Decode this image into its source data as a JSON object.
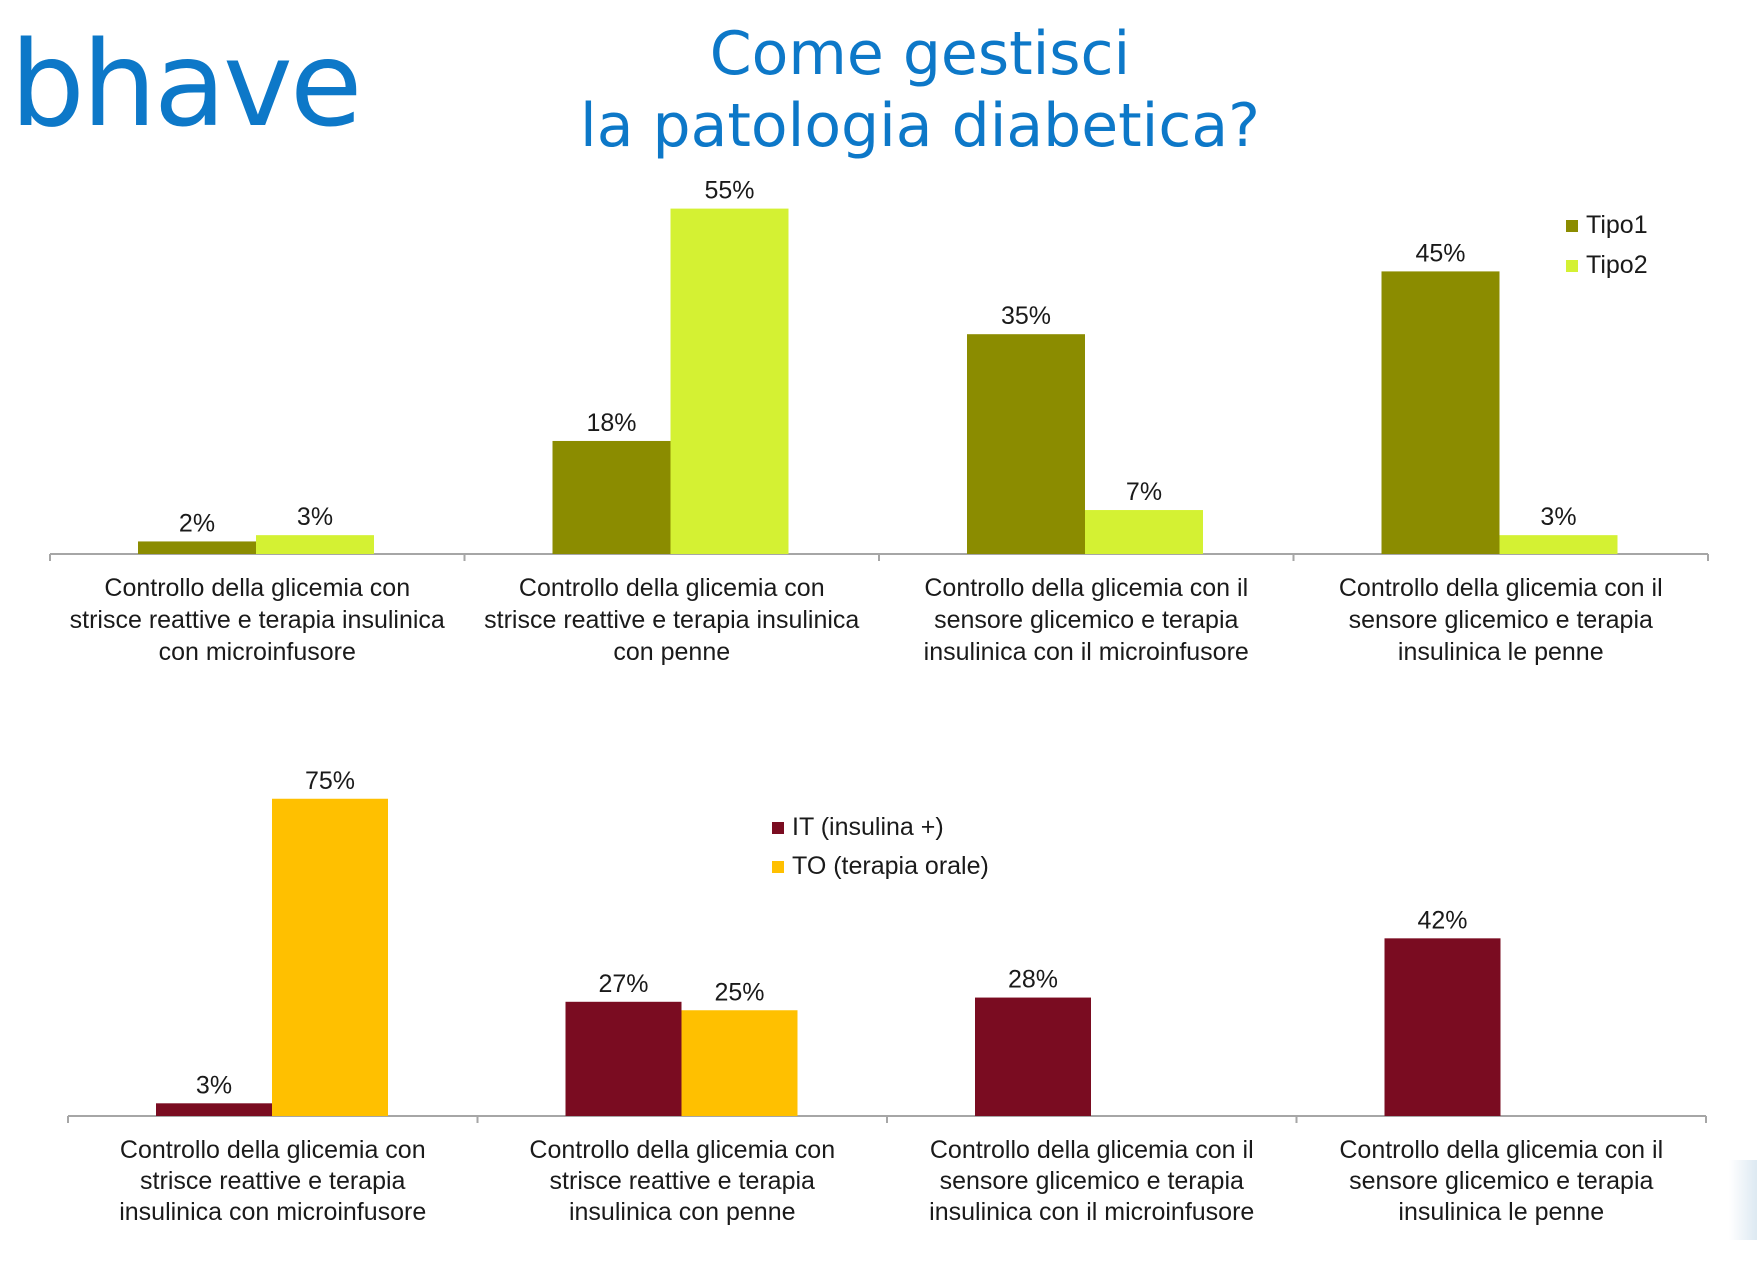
{
  "logo": {
    "text": "bhave",
    "color": "#0d78c8"
  },
  "header": {
    "title_line1": "Come gestisci",
    "title_line2": "la patologia diabetica?"
  },
  "chart_data": [
    {
      "type": "bar",
      "categories": [
        [
          "Controllo della glicemia con",
          "strisce reattive e terapia insulinica",
          "con microinfusore"
        ],
        [
          "Controllo della glicemia con",
          "strisce reattive e terapia insulinica",
          "con penne"
        ],
        [
          "Controllo della glicemia con il",
          "sensore glicemico e terapia",
          "insulinica con il microinfusore"
        ],
        [
          "Controllo della glicemia con il",
          "sensore glicemico e terapia",
          "insulinica le penne"
        ]
      ],
      "series": [
        {
          "name": "Tipo1",
          "color": "#8b8c00",
          "values": [
            2,
            18,
            35,
            45
          ],
          "labels": [
            "2%",
            "18%",
            "35%",
            "45%"
          ]
        },
        {
          "name": "Tipo2",
          "color": "#d4f133",
          "values": [
            3,
            55,
            7,
            3
          ],
          "labels": [
            "3%",
            "55%",
            "7%",
            "3%"
          ]
        }
      ],
      "ylim": [
        0,
        55
      ],
      "title": "",
      "xlabel": "",
      "ylabel": "",
      "grid": false,
      "legend": "top-right"
    },
    {
      "type": "bar",
      "categories": [
        [
          "Controllo della glicemia con",
          "strisce reattive e terapia",
          "insulinica con microinfusore"
        ],
        [
          "Controllo della glicemia con",
          "strisce reattive e terapia",
          "insulinica con penne"
        ],
        [
          "Controllo della glicemia con il",
          "sensore glicemico e terapia",
          "insulinica con il microinfusore"
        ],
        [
          "Controllo della glicemia con il",
          "sensore glicemico e terapia",
          "insulinica le penne"
        ]
      ],
      "series": [
        {
          "name": "IT (insulina +)",
          "color": "#7a0c21",
          "values": [
            3,
            27,
            28,
            42
          ],
          "labels": [
            "3%",
            "27%",
            "28%",
            "42%"
          ]
        },
        {
          "name": "TO (terapia orale)",
          "color": "#ffc000",
          "values": [
            75,
            25,
            null,
            null
          ],
          "labels": [
            "75%",
            "25%",
            null,
            null
          ]
        }
      ],
      "ylim": [
        0,
        75
      ],
      "title": "",
      "xlabel": "",
      "ylabel": "",
      "grid": false,
      "legend": "top-center"
    }
  ]
}
